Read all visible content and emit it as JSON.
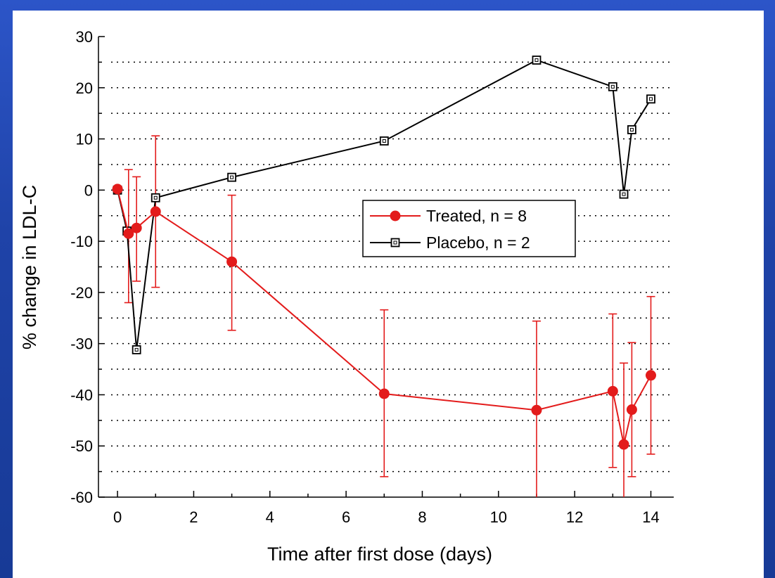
{
  "chart_data": {
    "type": "line",
    "xlabel": "Time after first dose (days)",
    "ylabel": "% change in LDL-C",
    "xlim": [
      -0.5,
      14.6
    ],
    "ylim": [
      -60,
      30
    ],
    "xticks": [
      0,
      2,
      4,
      6,
      8,
      10,
      12,
      14
    ],
    "yticks": [
      30,
      20,
      10,
      0,
      -10,
      -20,
      -30,
      -40,
      -50,
      -60
    ],
    "grid": "dotted horizontal",
    "legend_position": "center-right",
    "series": [
      {
        "name": "Treated, n = 8",
        "color": "#e31b1b",
        "marker": "filled-circle",
        "x": [
          0,
          0.29,
          0.5,
          1,
          3,
          7,
          11,
          13,
          13.29,
          13.5,
          14
        ],
        "y": [
          0.2,
          -8.5,
          -7.4,
          -4.2,
          -14,
          -39.8,
          -43,
          -39.3,
          -49.7,
          -42.9,
          -36.2
        ],
        "y_low": [
          null,
          -22,
          -17.8,
          -19,
          -27.4,
          -56,
          -60,
          -54.2,
          -60,
          -56,
          -51.6
        ],
        "y_high": [
          null,
          4,
          2.6,
          10.6,
          -1,
          -23.4,
          -25.6,
          -24.2,
          -33.8,
          -29.8,
          -20.8
        ]
      },
      {
        "name": "Placebo, n = 2",
        "color": "#000000",
        "marker": "open-square",
        "x": [
          0,
          0.25,
          0.5,
          1,
          3,
          7,
          11,
          13,
          13.29,
          13.5,
          14
        ],
        "y": [
          0,
          -8,
          -31.2,
          -1.5,
          2.5,
          9.6,
          25.4,
          20.2,
          -0.8,
          11.8,
          17.8
        ]
      }
    ]
  }
}
